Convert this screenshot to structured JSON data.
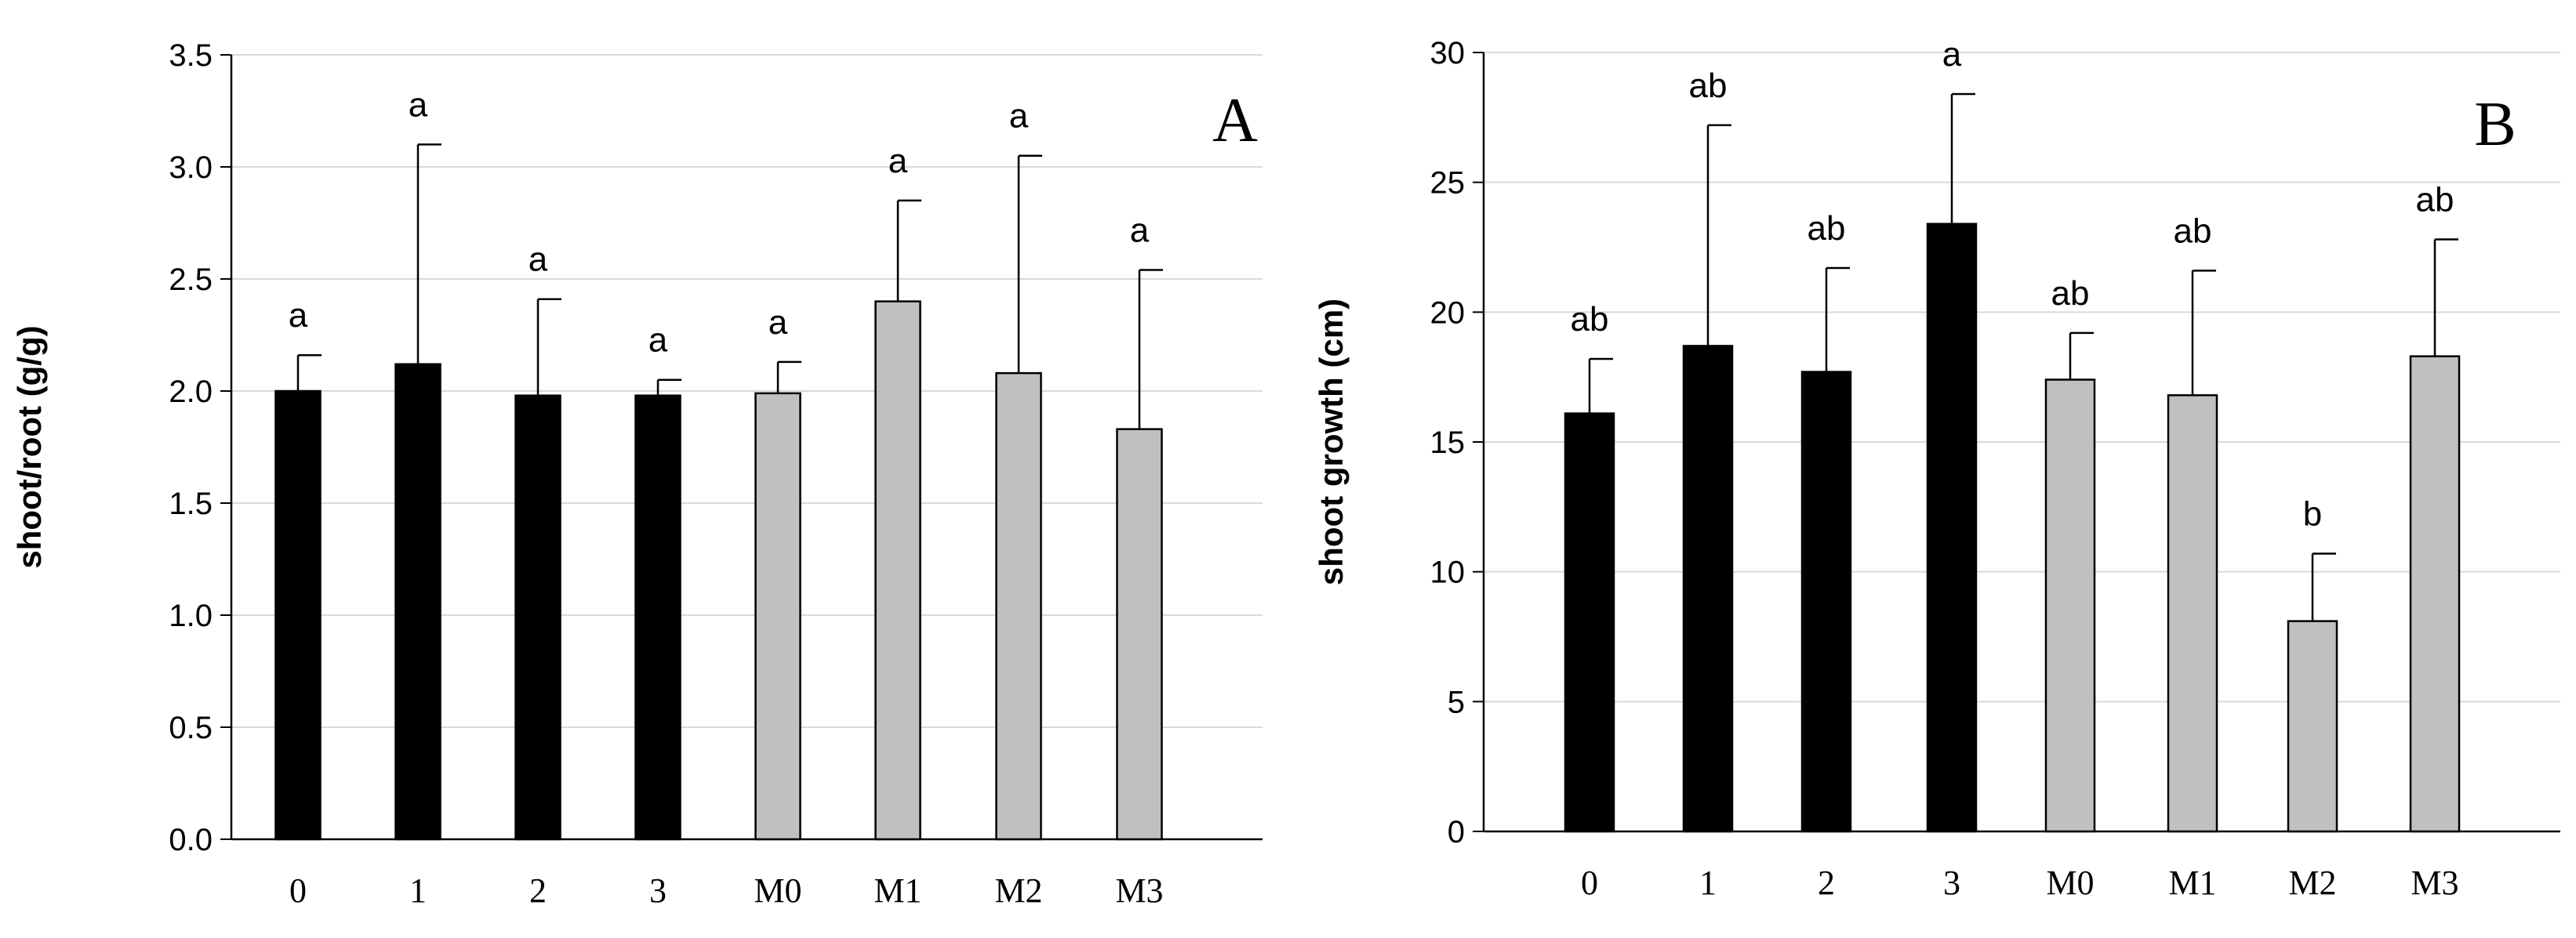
{
  "colors": {
    "dark": "#000000",
    "light": "#c0c0c0",
    "grid": "#d9d9d9"
  },
  "chart_data": [
    {
      "type": "bar",
      "panel_label": "A",
      "ylabel": "shoot/root (g/g)",
      "ylim": [
        0,
        3.5
      ],
      "yticks": [
        "0.0",
        "0.5",
        "1.0",
        "1.5",
        "2.0",
        "2.5",
        "3.0",
        "3.5"
      ],
      "categories": [
        "0",
        "1",
        "2",
        "3",
        "M0",
        "M1",
        "M2",
        "M3"
      ],
      "values": [
        2.0,
        2.12,
        1.98,
        1.98,
        1.99,
        2.4,
        2.08,
        1.83
      ],
      "errors": [
        0.16,
        0.98,
        0.43,
        0.07,
        0.14,
        0.45,
        0.97,
        0.71
      ],
      "groups": [
        "dark",
        "dark",
        "dark",
        "dark",
        "light",
        "light",
        "light",
        "light"
      ],
      "letters": [
        "a",
        "a",
        "a",
        "a",
        "a",
        "a",
        "a",
        "a"
      ],
      "grid": true
    },
    {
      "type": "bar",
      "panel_label": "B",
      "ylabel": "shoot growth (cm)",
      "ylim": [
        0,
        30
      ],
      "yticks": [
        "0",
        "5",
        "10",
        "15",
        "20",
        "25",
        "30"
      ],
      "categories": [
        "0",
        "1",
        "2",
        "3",
        "M0",
        "M1",
        "M2",
        "M3"
      ],
      "values": [
        16.1,
        18.7,
        17.7,
        23.4,
        17.4,
        16.8,
        8.1,
        18.3
      ],
      "errors": [
        2.1,
        8.5,
        4.0,
        5.0,
        1.8,
        4.8,
        2.6,
        4.5
      ],
      "groups": [
        "dark",
        "dark",
        "dark",
        "dark",
        "light",
        "light",
        "light",
        "light"
      ],
      "letters": [
        "ab",
        "ab",
        "ab",
        "a",
        "ab",
        "ab",
        "b",
        "ab"
      ],
      "grid": true
    }
  ]
}
